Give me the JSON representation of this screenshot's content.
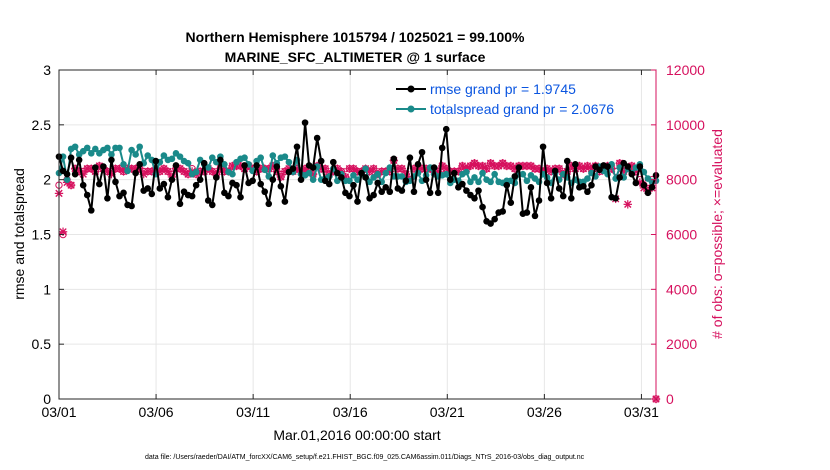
{
  "chart_data": {
    "type": "line",
    "title_line1": "Northern Hemisphere 1015794 / 1025021 = 99.100%",
    "title_line2": "MARINE_SFC_ALTIMETER @ 1 surface",
    "xlabel": "Mar.01,2016 00:00:00 start",
    "ylabel_left": "rmse and totalspread",
    "ylabel_right": "# of obs: o=possible; ×=evaluated",
    "x_tick_labels": [
      "03/01",
      "03/06",
      "03/11",
      "03/16",
      "03/21",
      "03/26",
      "03/31"
    ],
    "x_tick_days": [
      1,
      6,
      11,
      16,
      21,
      26,
      31
    ],
    "xlim": [
      1,
      31.75
    ],
    "ylim_left": [
      0,
      3
    ],
    "y_ticks_left": [
      "0",
      "0.5",
      "1",
      "1.5",
      "2",
      "2.5",
      "3"
    ],
    "ylim_right": [
      0,
      12000
    ],
    "y_ticks_right": [
      "0",
      "2000",
      "4000",
      "6000",
      "8000",
      "10000",
      "12000"
    ],
    "grid": true,
    "footer": "data file: /Users/raeder/DAI/ATM_forcXX/CAM6_setup/f.e21.FHIST_BGC.f09_025.CAM6assim.011/Diags_NTrS_2016-03/obs_diag_output.nc",
    "colors": {
      "rmse": "#000000",
      "spread": "#1a8a8a",
      "obs": "#d6115e",
      "legend_text": "#0a55e0"
    },
    "series": [
      {
        "name": "rmse",
        "legend": "rmse grand pr = 1.9745",
        "axis": "left",
        "values": [
          2.21,
          2.08,
          2.05,
          2.2,
          2.05,
          2.18,
          1.95,
          1.86,
          1.72,
          2.11,
          1.96,
          2.12,
          1.83,
          2.18,
          1.98,
          1.85,
          1.88,
          1.77,
          1.76,
          2.06,
          2.14,
          1.9,
          1.92,
          1.87,
          2.17,
          1.92,
          1.96,
          1.84,
          2.0,
          2.13,
          1.78,
          1.89,
          1.86,
          1.85,
          1.95,
          2.0,
          2.15,
          1.81,
          1.77,
          2.02,
          2.18,
          1.88,
          1.85,
          1.97,
          1.95,
          1.84,
          2.13,
          1.97,
          1.99,
          2.13,
          1.96,
          1.89,
          1.78,
          2.0,
          2.12,
          1.94,
          1.8,
          2.07,
          2.1,
          2.3,
          2.0,
          2.52,
          2.13,
          2.11,
          2.38,
          2.17,
          1.99,
          1.96,
          2.16,
          2.06,
          2.02,
          1.88,
          1.85,
          1.95,
          1.8,
          2.06,
          2.02,
          1.83,
          1.86,
          1.97,
          1.89,
          1.93,
          1.89,
          2.19,
          1.92,
          1.9,
          1.99,
          2.2,
          1.89,
          2.14,
          2.25,
          2.0,
          1.88,
          2.11,
          1.88,
          2.29,
          2.46,
          2.0,
          2.06,
          1.93,
          1.96,
          1.9,
          1.86,
          1.83,
          1.9,
          1.75,
          1.62,
          1.6,
          1.64,
          1.7,
          1.71,
          1.95,
          1.79,
          2.03,
          2.11,
          1.69,
          1.7,
          1.93,
          1.67,
          1.81,
          2.3,
          1.97,
          1.83,
          2.08,
          1.92,
          1.85,
          2.17,
          1.83,
          2.14,
          1.93,
          1.94,
          1.89,
          1.95,
          2.12,
          2.09,
          2.13,
          2.12,
          1.84,
          1.83,
          2.02,
          2.15,
          2.12,
          2.05,
          1.97,
          2.12,
          1.95,
          1.88,
          1.93,
          2.04
        ]
      },
      {
        "name": "totalspread",
        "legend": "totalspread grand pr = 2.0676",
        "axis": "left",
        "values": [
          2.06,
          2.21,
          2.0,
          2.28,
          2.3,
          2.23,
          2.26,
          2.29,
          2.24,
          2.28,
          2.24,
          2.27,
          2.29,
          2.23,
          2.29,
          2.29,
          2.14,
          2.08,
          2.27,
          2.23,
          2.3,
          2.15,
          2.22,
          2.18,
          2.05,
          2.16,
          2.22,
          2.18,
          2.19,
          2.24,
          2.21,
          2.17,
          2.15,
          2.05,
          2.07,
          2.18,
          2.14,
          2.11,
          2.2,
          2.16,
          2.21,
          2.14,
          2.07,
          2.05,
          2.16,
          2.19,
          2.2,
          2.14,
          2.08,
          2.17,
          2.2,
          2.09,
          2.03,
          2.22,
          2.15,
          2.2,
          2.21,
          2.16,
          2.07,
          2.18,
          2.05,
          2.04,
          2.06,
          2.0,
          2.12,
          2.0,
          2.01,
          2.03,
          2.1,
          1.99,
          2.05,
          1.99,
          1.99,
          2.04,
          2.0,
          2.05,
          2.1,
          1.98,
          2.02,
          2.05,
          1.98,
          2.06,
          2.11,
          2.03,
          2.03,
          2.03,
          1.98,
          1.99,
          2.03,
          2.06,
          1.99,
          2.04,
          2.11,
          2.05,
          2.03,
          2.04,
          2.05,
          1.97,
          2.0,
          1.99,
          2.05,
          2.07,
          1.98,
          2.02,
          1.98,
          2.06,
          2.0,
          1.98,
          2.05,
          1.98,
          1.97,
          1.99,
          1.99,
          1.97,
          2.05,
          2.05,
          1.99,
          2.04,
          2.01,
          1.98,
          2.05,
          2.02,
          1.97,
          2.06,
          2.0,
          2.05,
          2.02,
          1.97,
          2.0,
          1.98,
          1.98,
          2.01,
          2.06,
          2.03,
          2.12,
          2.08,
          2.05,
          2.14,
          2.01,
          2.11,
          2.02,
          2.1,
          2.06,
          2.11,
          2.14,
          2.07,
          2.01,
          1.98,
          1.99
        ]
      },
      {
        "name": "obs_possible",
        "legend": "",
        "axis": "right",
        "values": [
          7800,
          6000,
          8000,
          7800,
          8400,
          8300,
          8300,
          8400,
          8400,
          8300,
          8500,
          8400,
          8300,
          8300,
          8400,
          8400,
          8300,
          8400,
          8400,
          8400,
          8400,
          8300,
          8300,
          8300,
          8400,
          8300,
          8400,
          8300,
          8200,
          8400,
          8400,
          8300,
          8200,
          8400,
          8200,
          8300,
          8300,
          8400,
          8300,
          8200,
          8400,
          8300,
          8300,
          8500,
          8500,
          8500,
          8400,
          8500,
          8400,
          8300,
          8400,
          8400,
          8400,
          8500,
          8300,
          8100,
          8300,
          8400,
          8300,
          8400,
          8300,
          8400,
          8300,
          8200,
          8500,
          8400,
          8400,
          8200,
          8300,
          8400,
          8300,
          8100,
          8400,
          8400,
          8300,
          8300,
          8400,
          8300,
          8400,
          8200,
          8300,
          8300,
          8300,
          8700,
          8400,
          8400,
          8200,
          8000,
          8400,
          8400,
          8400,
          8400,
          8400,
          8300,
          8300,
          8500,
          8400,
          8300,
          8300,
          8300,
          8500,
          8400,
          8500,
          8600,
          8500,
          8500,
          8400,
          8600,
          8500,
          8500,
          8600,
          8500,
          8500,
          8400,
          8500,
          8500,
          8500,
          8500,
          8400,
          8400,
          8300,
          8400,
          8300,
          8400,
          8400,
          8200,
          8300,
          8500,
          8400,
          8500,
          8400,
          8500,
          8400,
          8500,
          8300,
          8400,
          8500,
          8400,
          8300,
          8600,
          8300,
          8400,
          8500,
          8300,
          8000,
          7800,
          7900,
          8000,
          0
        ]
      },
      {
        "name": "obs_evaluated",
        "legend": "",
        "axis": "right",
        "values": [
          7500,
          6100,
          7900,
          7800,
          8400,
          8300,
          8200,
          8400,
          8400,
          8300,
          8500,
          8400,
          8300,
          8200,
          8400,
          8400,
          8300,
          8400,
          8400,
          8400,
          8400,
          8200,
          8300,
          8300,
          8400,
          8300,
          8400,
          8300,
          8100,
          8400,
          8400,
          8300,
          8200,
          8300,
          8200,
          8300,
          8300,
          8400,
          8300,
          8200,
          8400,
          8300,
          8300,
          8500,
          8500,
          8500,
          8400,
          8500,
          8400,
          8300,
          8400,
          8400,
          8400,
          8500,
          8300,
          8100,
          8300,
          8400,
          8300,
          8400,
          8300,
          8400,
          8300,
          8200,
          8500,
          8400,
          8400,
          8200,
          8300,
          8400,
          8300,
          8100,
          8400,
          8400,
          8300,
          8300,
          8400,
          8300,
          8400,
          8200,
          8300,
          8300,
          8300,
          8700,
          8400,
          8400,
          8200,
          8000,
          8400,
          8400,
          8400,
          8400,
          8400,
          8300,
          8300,
          8500,
          8400,
          8300,
          8300,
          8300,
          8500,
          8400,
          8500,
          8600,
          8500,
          8500,
          8400,
          8600,
          8500,
          8500,
          8600,
          8500,
          8500,
          8400,
          8500,
          8500,
          8500,
          8500,
          8400,
          8400,
          8300,
          8400,
          8300,
          8400,
          8400,
          8200,
          8300,
          8500,
          8400,
          8500,
          8400,
          8500,
          8400,
          8500,
          8300,
          8400,
          8500,
          8400,
          7300,
          8600,
          8300,
          7100,
          8500,
          8300,
          7900,
          7700,
          7600,
          7700,
          0
        ]
      }
    ]
  }
}
